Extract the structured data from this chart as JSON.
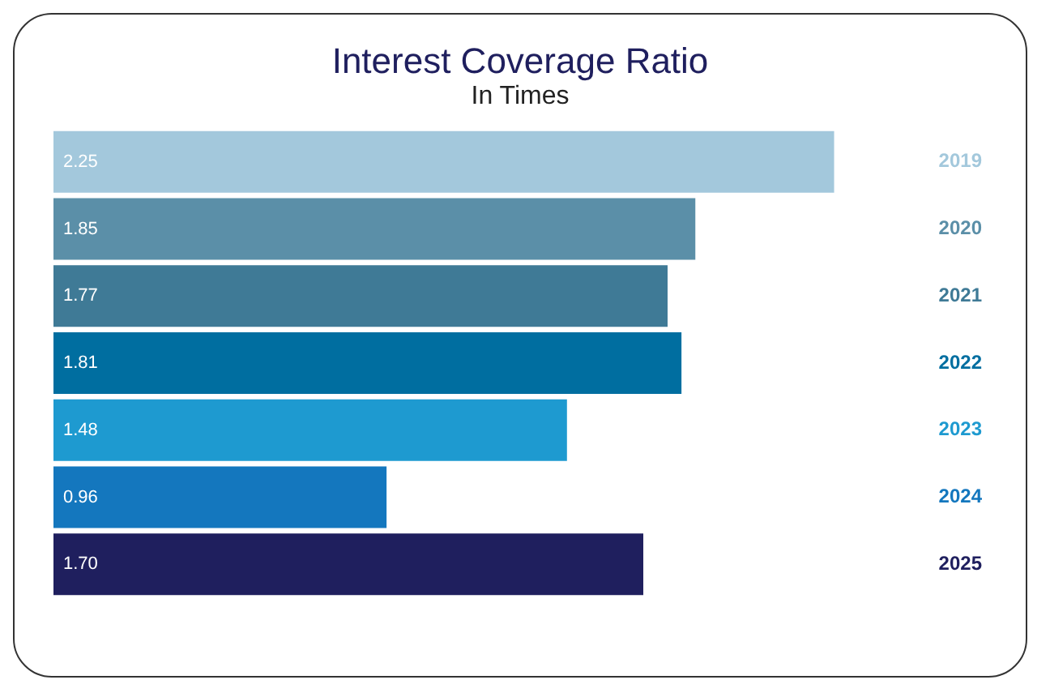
{
  "chart_data": {
    "type": "bar",
    "orientation": "horizontal",
    "title": "Interest Coverage Ratio",
    "subtitle": "In Times",
    "categories": [
      "2019",
      "2020",
      "2021",
      "2022",
      "2023",
      "2024",
      "2025"
    ],
    "values": [
      2.25,
      1.85,
      1.77,
      1.81,
      1.48,
      0.96,
      1.7
    ],
    "colors": [
      "#a3c8dc",
      "#5b8fa8",
      "#3f7a96",
      "#006ea0",
      "#1e9ad0",
      "#1477be",
      "#1f1f5e"
    ],
    "value_labels": [
      "2.25",
      "1.85",
      "1.77",
      "1.81",
      "1.48",
      "0.96",
      "1.70"
    ],
    "grid": false,
    "legend": false
  }
}
